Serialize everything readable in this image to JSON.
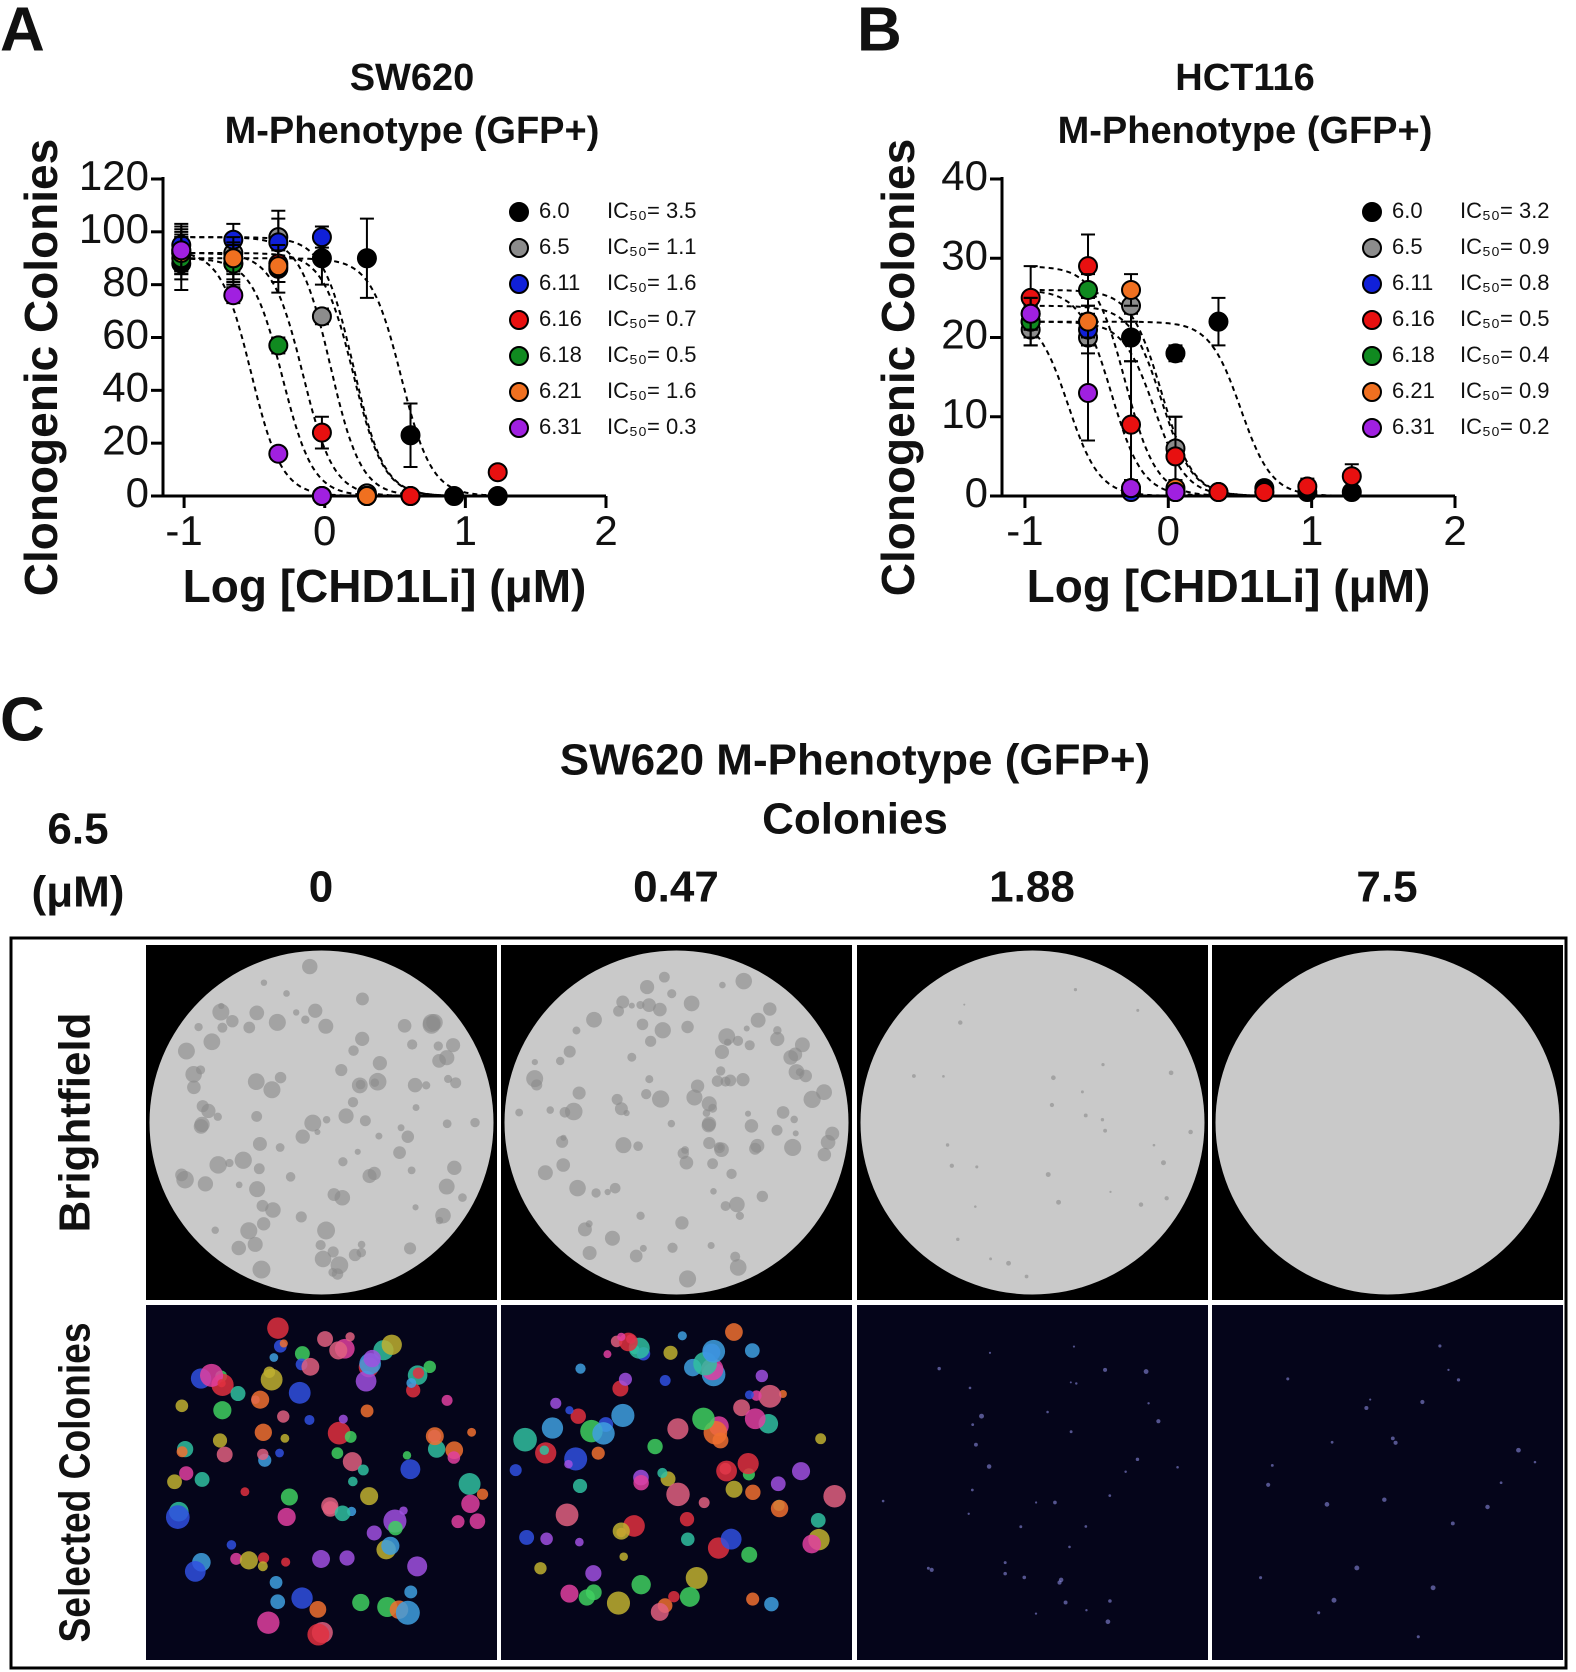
{
  "chart_data": [
    {
      "type": "scatter",
      "panel": "A",
      "title": [
        "SW620",
        "M-Phenotype (GFP+)"
      ],
      "x_label": "Log [CHD1Li] (μM)",
      "y_label": "Clonogenic Colonies",
      "xlim": [
        -1.15,
        2
      ],
      "ylim": [
        0,
        120
      ],
      "xticks": [
        -1,
        0,
        1,
        2
      ],
      "yticks": [
        0,
        20,
        40,
        60,
        80,
        100,
        120
      ],
      "x": [
        -1.02,
        -0.65,
        -0.33,
        -0.02,
        0.3,
        0.61,
        0.92,
        1.23
      ],
      "series": [
        {
          "name": "6.0",
          "color": "#000000",
          "ic50": 3.5,
          "ic50_label": "IC₅₀= 3.5",
          "values": [
            88,
            88,
            86,
            90,
            90,
            23,
            0,
            0
          ],
          "errors": [
            10,
            8,
            9,
            10,
            15,
            12,
            0,
            0
          ]
        },
        {
          "name": "6.5",
          "color": "#8c8c8c",
          "ic50": 1.1,
          "ic50_label": "IC₅₀= 1.1",
          "values": [
            93,
            92,
            98,
            68,
            1,
            0,
            null,
            null
          ],
          "errors": [
            9,
            7,
            10,
            3,
            1,
            0,
            null,
            null
          ]
        },
        {
          "name": "6.11",
          "color": "#1020d8",
          "ic50": 1.6,
          "ic50_label": "IC₅₀= 1.6",
          "values": [
            95,
            97,
            96,
            98,
            0,
            null,
            null,
            null
          ],
          "errors": [
            8,
            6,
            9,
            4,
            0,
            null,
            null,
            null
          ]
        },
        {
          "name": "6.16",
          "color": "#e81010",
          "ic50": 0.7,
          "ic50_label": "IC₅₀= 0.7",
          "values": [
            92,
            90,
            88,
            24,
            0,
            0,
            null,
            9
          ],
          "errors": [
            8,
            8,
            7,
            6,
            0,
            0,
            null,
            0
          ]
        },
        {
          "name": "6.18",
          "color": "#108a20",
          "ic50": 0.5,
          "ic50_label": "IC₅₀= 0.5",
          "values": [
            90,
            88,
            57,
            0,
            0,
            null,
            null,
            null
          ],
          "errors": [
            8,
            7,
            3,
            0,
            0,
            null,
            null,
            null
          ]
        },
        {
          "name": "6.21",
          "color": "#f07020",
          "ic50": 1.6,
          "ic50_label": "IC₅₀= 1.6",
          "values": [
            92,
            90,
            87,
            0,
            0,
            null,
            null,
            null
          ],
          "errors": [
            7,
            6,
            6,
            0,
            0,
            null,
            null,
            null
          ]
        },
        {
          "name": "6.31",
          "color": "#a020e0",
          "ic50": 0.3,
          "ic50_label": "IC₅₀= 0.3",
          "values": [
            93,
            76,
            16,
            0,
            null,
            null,
            null,
            null
          ],
          "errors": [
            8,
            3,
            2,
            0,
            null,
            null,
            null,
            null
          ]
        }
      ]
    },
    {
      "type": "scatter",
      "panel": "B",
      "title": [
        "HCT116",
        "M-Phenotype (GFP+)"
      ],
      "x_label": "Log [CHD1Li] (μM)",
      "y_label": "Clonogenic Colonies",
      "xlim": [
        -1.16,
        2
      ],
      "ylim": [
        0,
        40
      ],
      "xticks": [
        -1,
        0,
        1,
        2
      ],
      "yticks": [
        0,
        10,
        20,
        30,
        40
      ],
      "x": [
        -0.96,
        -0.56,
        -0.26,
        0.05,
        0.35,
        0.67,
        0.97,
        1.28
      ],
      "series": [
        {
          "name": "6.0",
          "color": "#000000",
          "ic50": 3.2,
          "ic50_label": "IC₅₀= 3.2",
          "values": [
            22,
            22,
            20,
            18,
            22,
            1,
            0.5,
            0.5
          ],
          "errors": [
            3,
            3,
            3,
            1,
            3,
            0.5,
            0.5,
            0.5
          ]
        },
        {
          "name": "6.5",
          "color": "#8c8c8c",
          "ic50": 0.9,
          "ic50_label": "IC₅₀= 0.9",
          "values": [
            21,
            20,
            24,
            6,
            0.5,
            0.5,
            null,
            null
          ],
          "errors": [
            2,
            2,
            2,
            4,
            0.5,
            0.5,
            null,
            null
          ]
        },
        {
          "name": "6.11",
          "color": "#1020d8",
          "ic50": 0.8,
          "ic50_label": "IC₅₀= 0.8",
          "values": [
            22,
            21,
            0.5,
            0.5,
            null,
            null,
            null,
            null
          ],
          "errors": [
            2,
            2,
            0.5,
            0.5,
            null,
            null,
            null,
            null
          ]
        },
        {
          "name": "6.16",
          "color": "#e81010",
          "ic50": 0.5,
          "ic50_label": "IC₅₀= 0.5",
          "values": [
            25,
            29,
            9,
            5,
            0.5,
            0.5,
            1.2,
            2.5
          ],
          "errors": [
            4,
            4,
            8,
            5,
            0.5,
            0.5,
            1,
            1.5
          ]
        },
        {
          "name": "6.18",
          "color": "#108a20",
          "ic50": 0.4,
          "ic50_label": "IC₅₀= 0.4",
          "values": [
            22,
            26,
            1,
            0.5,
            null,
            null,
            null,
            null
          ],
          "errors": [
            2,
            2,
            1,
            0.5,
            null,
            null,
            null,
            null
          ]
        },
        {
          "name": "6.21",
          "color": "#f07020",
          "ic50": 0.9,
          "ic50_label": "IC₅₀= 0.9",
          "values": [
            23,
            22,
            26,
            1,
            null,
            null,
            null,
            null
          ],
          "errors": [
            2,
            2,
            2,
            1,
            null,
            null,
            null,
            null
          ]
        },
        {
          "name": "6.31",
          "color": "#a020e0",
          "ic50": 0.2,
          "ic50_label": "IC₅₀= 0.2",
          "values": [
            23,
            13,
            1,
            0.5,
            null,
            null,
            null,
            null
          ],
          "errors": [
            2,
            6,
            1,
            0.5,
            null,
            null,
            null,
            null
          ]
        }
      ]
    }
  ],
  "panel_c": {
    "panel": "C",
    "title": [
      "SW620 M-Phenotype (GFP+)",
      "Colonies"
    ],
    "compound": [
      "6.5",
      "(μM)"
    ],
    "concentrations": [
      "0",
      "0.47",
      "1.88",
      "7.5"
    ],
    "rows": [
      "Brightfield",
      "Selected Colonies"
    ]
  }
}
